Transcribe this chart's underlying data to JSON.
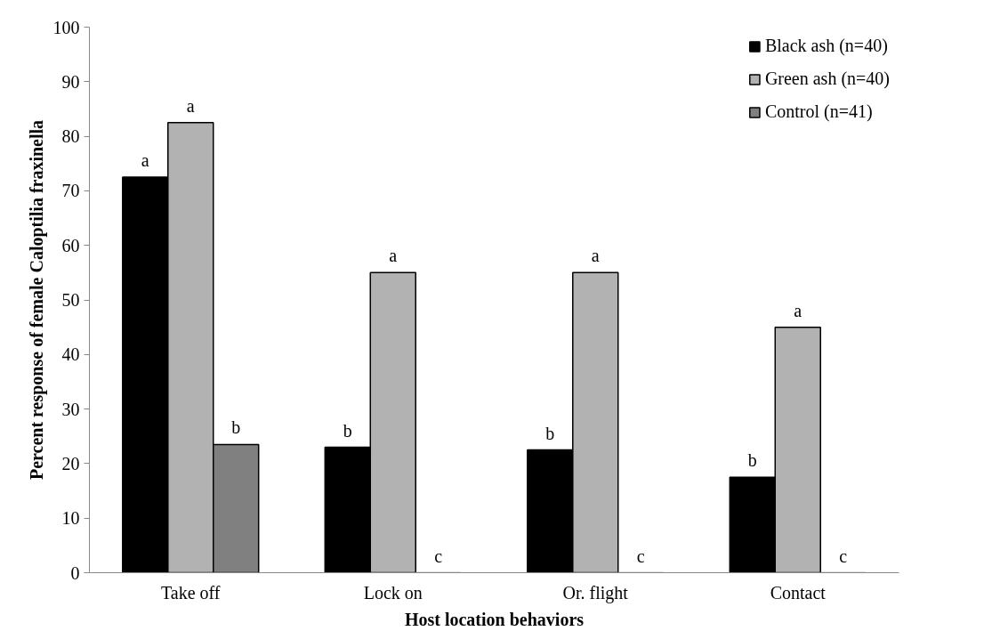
{
  "chart_data": {
    "type": "bar",
    "xlabel": "Host location behaviors",
    "ylabel": "Percent response of female Caloptilia fraxinella",
    "categories": [
      "Take off",
      "Lock on",
      "Or. flight",
      "Contact"
    ],
    "series": [
      {
        "name": "Black ash (n=40)",
        "color": "#000000",
        "values": [
          72.5,
          23,
          22.5,
          17.5
        ],
        "value_labels": [
          "a",
          "b",
          "b",
          "b"
        ]
      },
      {
        "name": "Green ash (n=40)",
        "color": "#b2b2b2",
        "values": [
          82.5,
          55,
          55,
          45
        ],
        "value_labels": [
          "a",
          "a",
          "a",
          "a"
        ]
      },
      {
        "name": "Control (n=41)",
        "color": "#808080",
        "values": [
          23.5,
          0,
          0,
          0
        ],
        "value_labels": [
          "b",
          "c",
          "c",
          "c"
        ]
      }
    ],
    "ylim": [
      0,
      100
    ],
    "yticks": [
      0,
      10,
      20,
      30,
      40,
      50,
      60,
      70,
      80,
      90,
      100
    ],
    "grid": false,
    "legend": "top right"
  }
}
